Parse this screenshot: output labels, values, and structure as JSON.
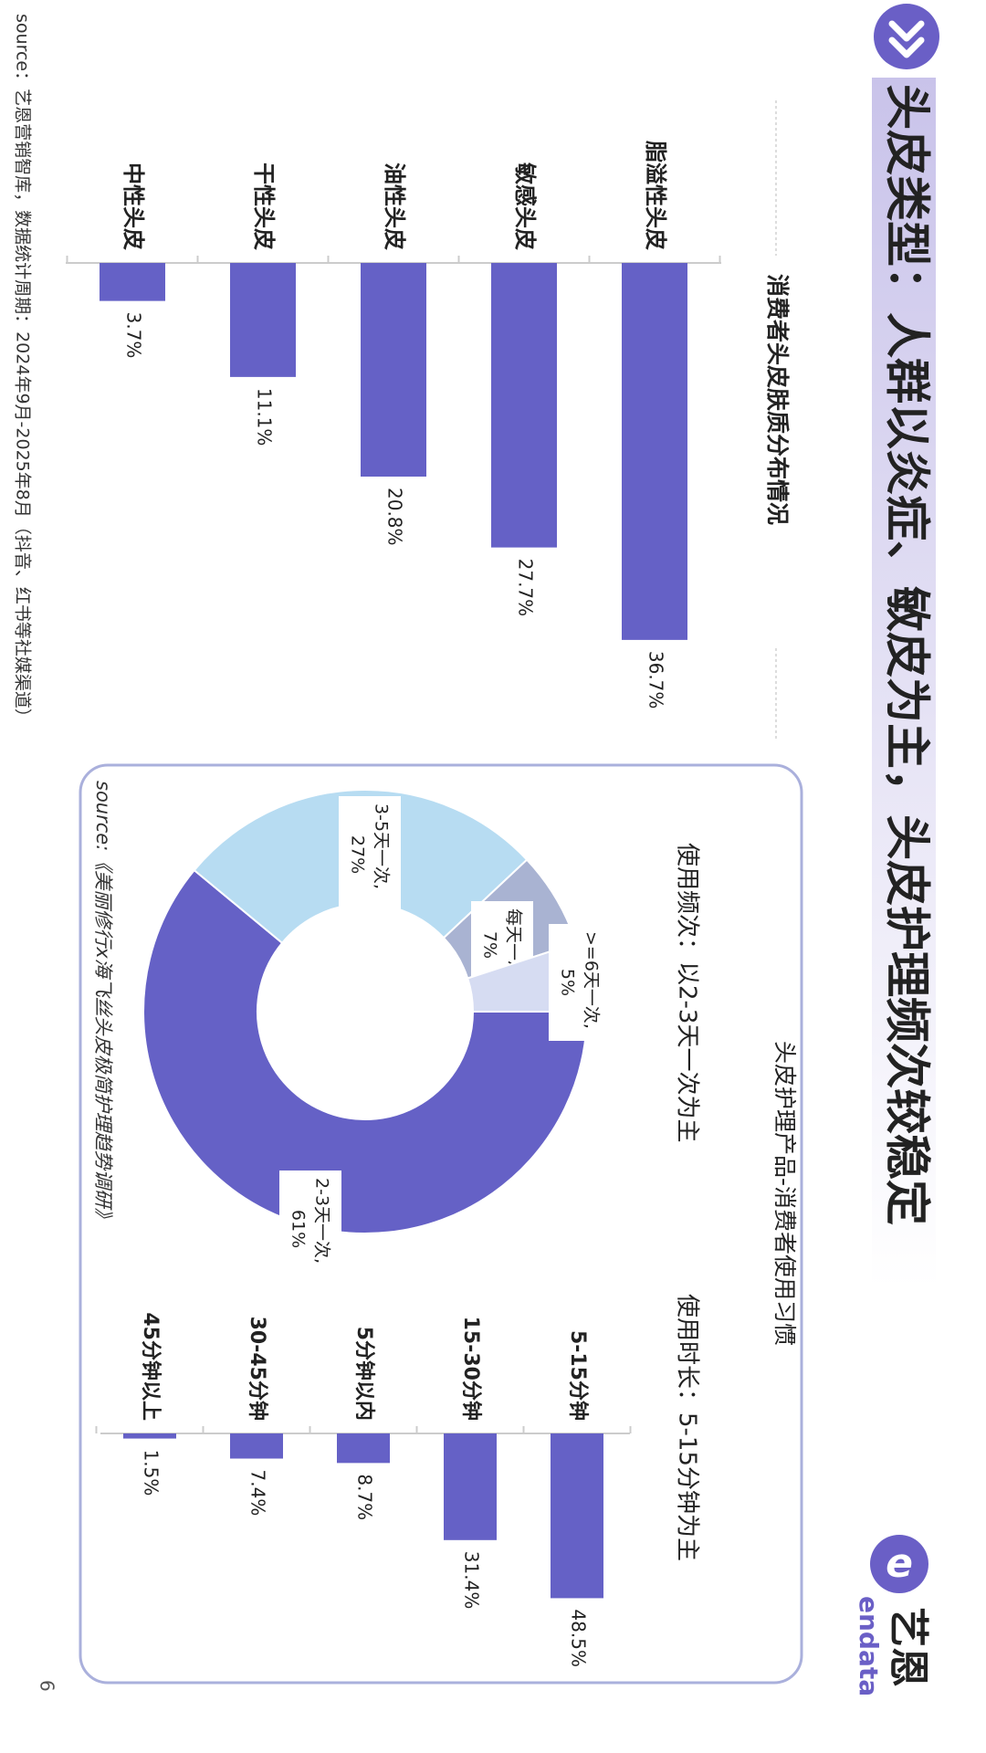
{
  "page": {
    "title": "头皮类型：人群以炎症、敏皮为主，头皮护理频次较稳定",
    "page_number": "6",
    "brand": {
      "name_cn": "艺恩",
      "name_en": "endata",
      "color": "#6a5fc6"
    },
    "colors": {
      "bar": "#6561c6",
      "title_band_start": "#c9c3ea",
      "title_band_end": "#ffffff",
      "panel_border": "#aab0dc",
      "light_blue": "#b7dcf2",
      "gray_blue": "#a9b3d2",
      "pale": "#d6dcf2"
    },
    "source_left": "source：艺恩营销智库，数据统计周期：2024年9月-2025年8月（抖音、红书等社媒渠道）",
    "source_right": "source:《美丽修行x海飞丝头皮极简护理趋势调研》"
  },
  "chart_data": [
    {
      "type": "bar",
      "title": "消费者头皮肤质分布情况",
      "categories": [
        "脂溢性头皮",
        "敏感头皮",
        "油性头皮",
        "干性头皮",
        "中性头皮"
      ],
      "values": [
        36.7,
        27.7,
        20.8,
        11.1,
        3.7
      ],
      "labels": [
        "36.7%",
        "27.7%",
        "20.8%",
        "11.1%",
        "3.7%"
      ],
      "unit": "%",
      "ylim": [
        0,
        40
      ]
    },
    {
      "type": "pie",
      "variant": "donut",
      "panel_title": "头皮护理产品-消费者使用习惯",
      "title": "使用频次：以2-3天一次为主",
      "slices": [
        {
          "name": "2-3天一次",
          "value": 61,
          "label_line1": "2-3天一次,",
          "label_line2": "61%",
          "color": "#6561c6"
        },
        {
          "name": "3-5天一次",
          "value": 27,
          "label_line1": "3-5天一次,",
          "label_line2": "27%",
          "color": "#b7dcf2"
        },
        {
          "name": "每天一次",
          "value": 7,
          "label_line1": "每天一次,",
          "label_line2": "7%",
          "color": "#a9b3d2"
        },
        {
          "name": ">=6天一次",
          "value": 5,
          "label_line1": ">=6天一次,",
          "label_line2": "5%",
          "color": "#d6dcf2"
        }
      ]
    },
    {
      "type": "bar",
      "title": "使用时长：5-15分钟为主",
      "categories": [
        "5-15分钟",
        "15-30分钟",
        "5分钟以内",
        "30-45分钟",
        "45分钟以上"
      ],
      "values": [
        48.5,
        31.4,
        8.7,
        7.4,
        1.5
      ],
      "labels": [
        "48.5%",
        "31.4%",
        "8.7%",
        "7.4%",
        "1.5%"
      ],
      "unit": "%",
      "ylim": [
        0,
        50
      ]
    }
  ]
}
